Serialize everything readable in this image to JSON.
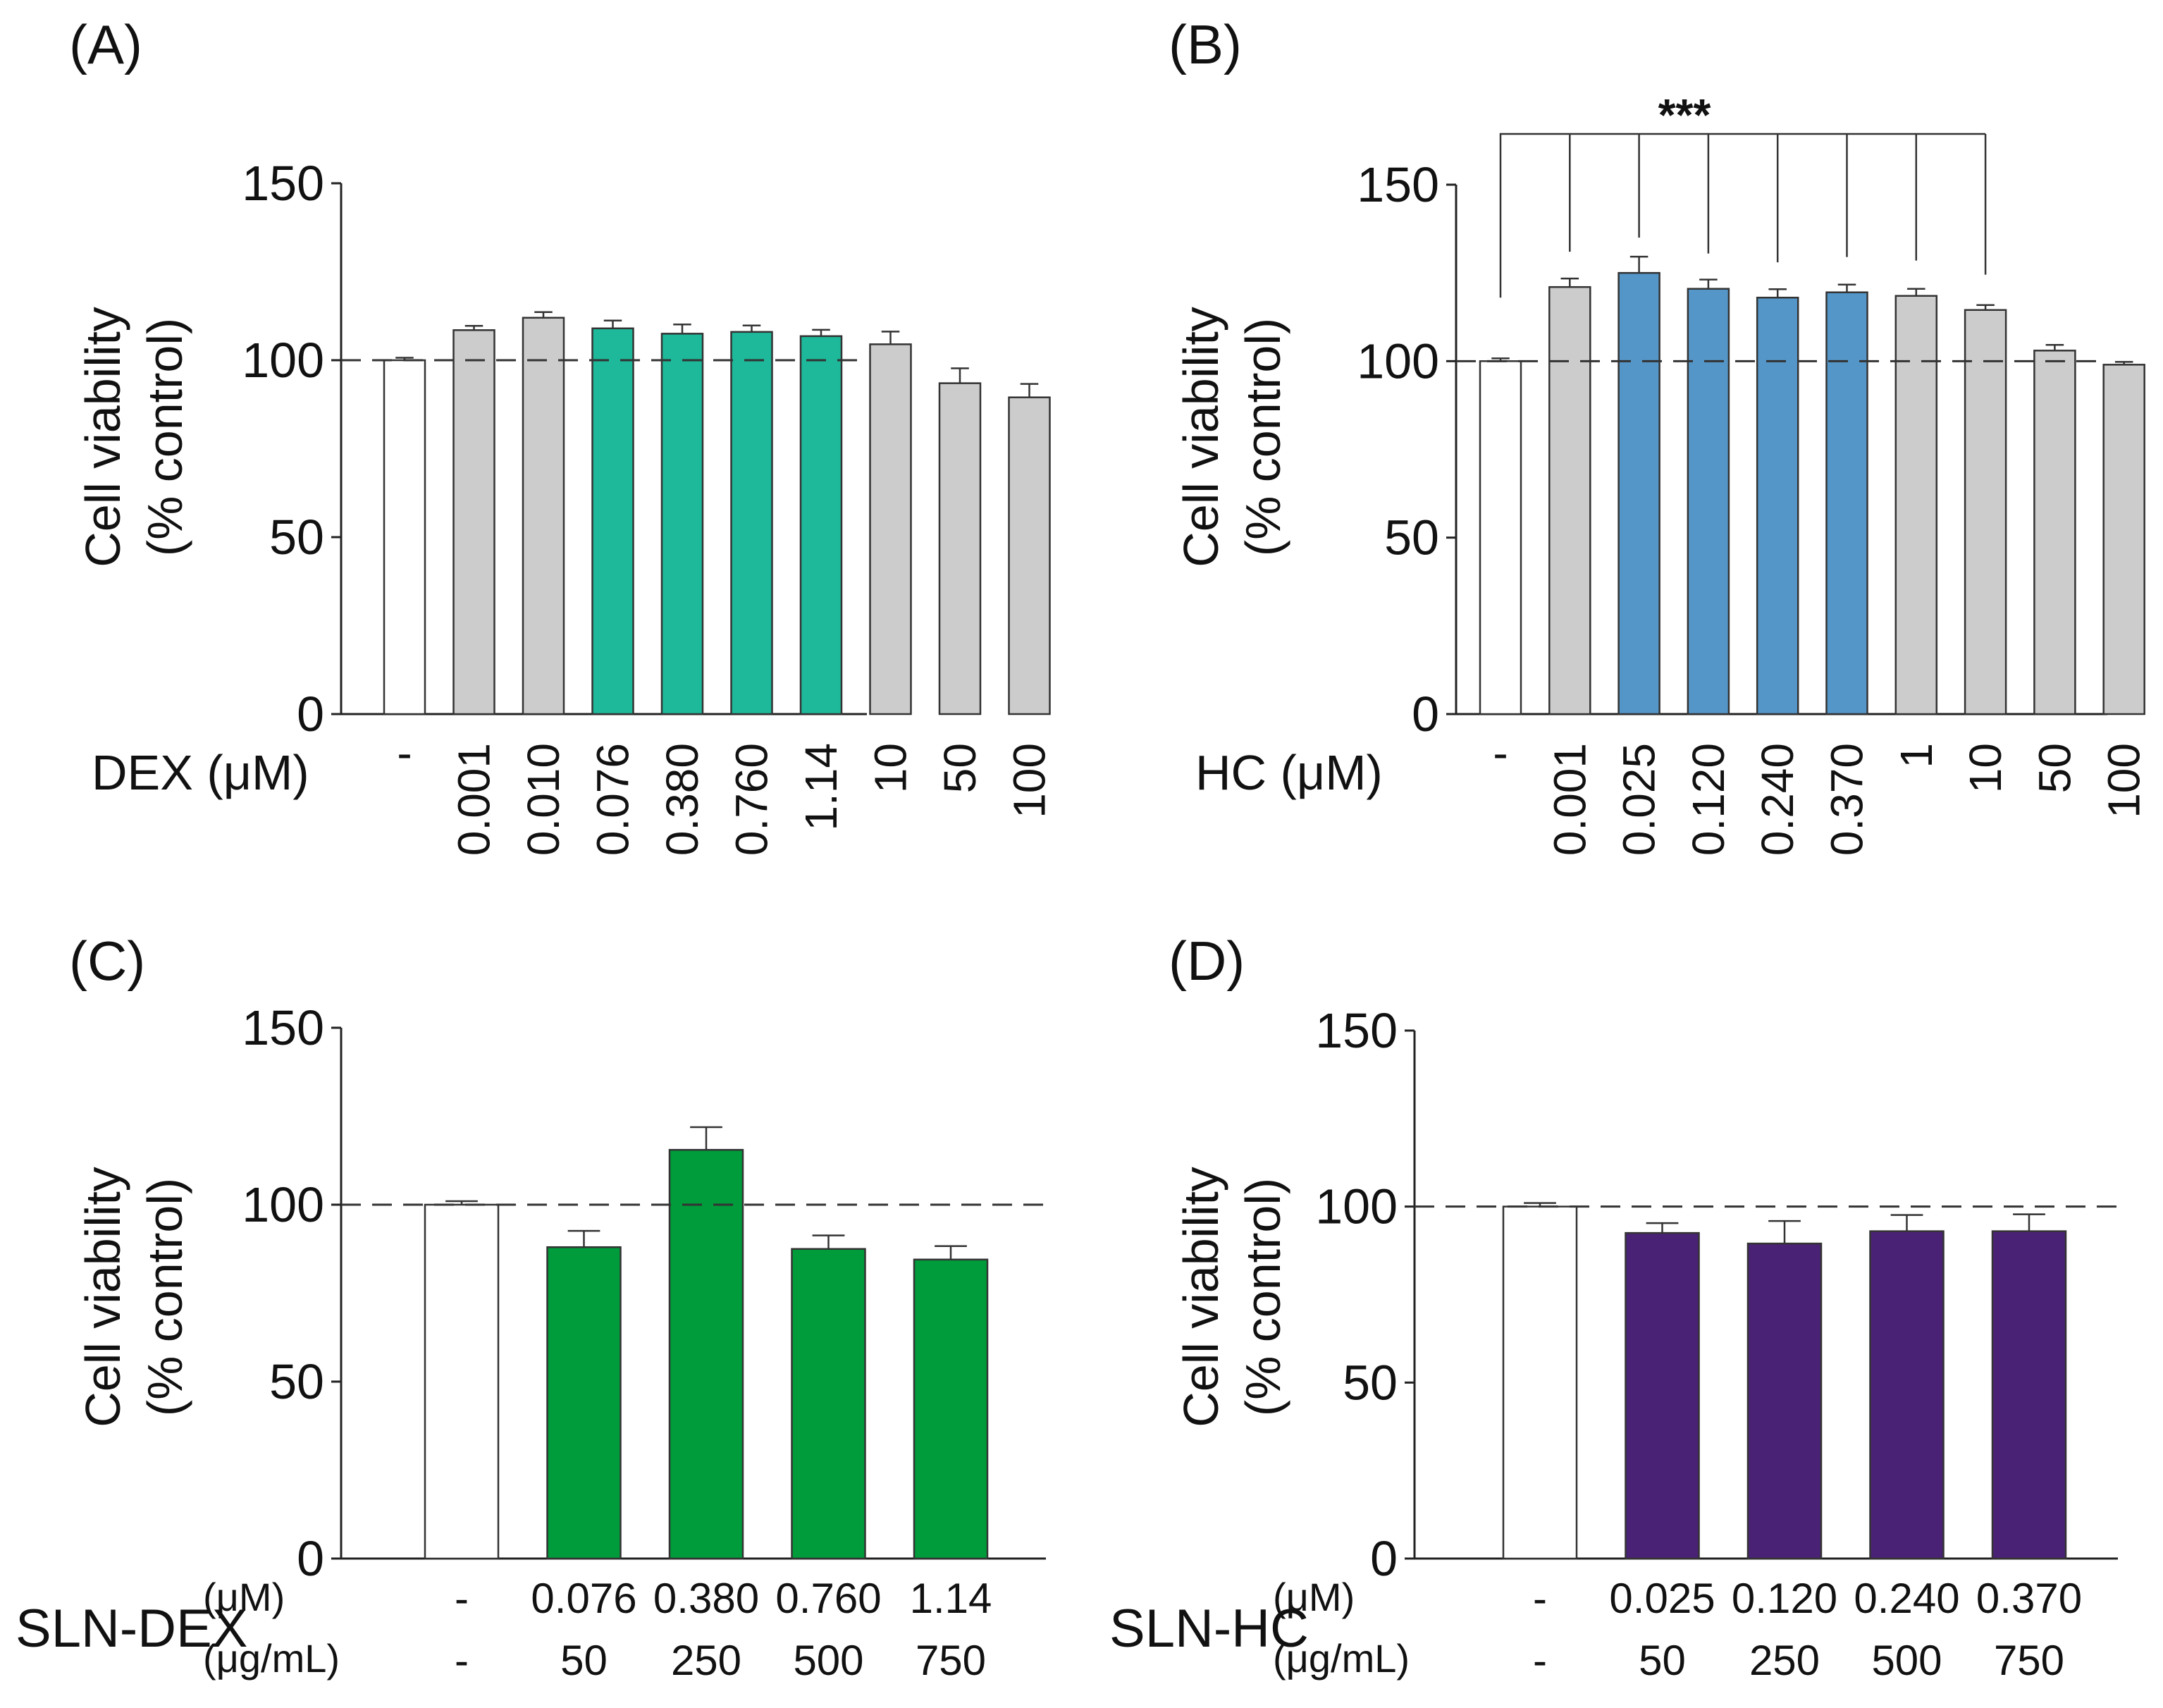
{
  "chart_data": [
    {
      "type": "bar",
      "panel": "(A)",
      "ylabel_line1": "Cell viability",
      "ylabel_line2": "(% control)",
      "ylim": [
        0,
        150
      ],
      "yticks": [
        "0",
        "50",
        "100",
        "150"
      ],
      "reference_line": 100,
      "xlabel": "DEX (μM)",
      "categories": [
        "-",
        "0.001",
        "0.010",
        "0.076",
        "0.380",
        "0.760",
        "1.14",
        "10",
        "50",
        "100"
      ],
      "values": [
        100,
        108.5,
        112,
        109,
        107.5,
        108,
        106.8,
        104.5,
        93.5,
        89.5
      ],
      "errors": [
        0.7,
        1.2,
        1.6,
        2.2,
        2.6,
        1.8,
        1.8,
        3.6,
        4.2,
        3.8
      ],
      "colors": [
        "#ffffff",
        "#cccccc",
        "#cccccc",
        "#1db99a",
        "#1db99a",
        "#1db99a",
        "#1db99a",
        "#cccccc",
        "#cccccc",
        "#cccccc"
      ]
    },
    {
      "type": "bar",
      "panel": "(B)",
      "ylabel_line1": "Cell viability",
      "ylabel_line2": "(% control)",
      "ylim": [
        0,
        150
      ],
      "yticks": [
        "0",
        "50",
        "100",
        "150"
      ],
      "reference_line": 100,
      "xlabel": "HC (μM)",
      "categories": [
        "-",
        "0.001",
        "0.025",
        "0.120",
        "0.240",
        "0.370",
        "1",
        "10",
        "50",
        "100"
      ],
      "values": [
        100,
        121,
        125,
        120.5,
        118,
        119.5,
        118.5,
        114.5,
        103,
        99
      ],
      "errors": [
        0.8,
        2.4,
        4.6,
        2.6,
        2.4,
        2.2,
        2.0,
        1.4,
        1.6,
        0.8
      ],
      "colors": [
        "#ffffff",
        "#cccccc",
        "#5596c9",
        "#5596c9",
        "#5596c9",
        "#5596c9",
        "#cccccc",
        "#cccccc",
        "#cccccc",
        "#cccccc"
      ],
      "significance": "***"
    },
    {
      "type": "bar",
      "panel": "(C)",
      "ylabel_line1": "Cell viability",
      "ylabel_line2": "(% control)",
      "ylim": [
        0,
        150
      ],
      "yticks": [
        "0",
        "50",
        "100",
        "150"
      ],
      "reference_line": 100,
      "xlabel": "SLN-DEX",
      "unit_row1": "(μM)",
      "unit_row2": "(μg/mL)",
      "categories": [
        "-",
        "0.076",
        "0.380",
        "0.760",
        "1.14"
      ],
      "categories_row2": [
        "-",
        "50",
        "250",
        "500",
        "750"
      ],
      "values": [
        100,
        88,
        115.5,
        87.5,
        84.5
      ],
      "errors": [
        1.0,
        4.6,
        6.4,
        3.8,
        3.8
      ],
      "colors": [
        "#ffffff",
        "#009b3a",
        "#009b3a",
        "#009b3a",
        "#009b3a"
      ]
    },
    {
      "type": "bar",
      "panel": "(D)",
      "ylabel_line1": "Cell viability",
      "ylabel_line2": "(% control)",
      "ylim": [
        0,
        150
      ],
      "yticks": [
        "0",
        "50",
        "100",
        "150"
      ],
      "reference_line": 100,
      "xlabel": "SLN-HC",
      "unit_row1": "(μM)",
      "unit_row2": "(μg/mL)",
      "categories": [
        "-",
        "0.025",
        "0.120",
        "0.240",
        "0.370"
      ],
      "categories_row2": [
        "-",
        "50",
        "250",
        "500",
        "750"
      ],
      "values": [
        100,
        92.5,
        89.5,
        93,
        93
      ],
      "errors": [
        1.0,
        2.8,
        6.4,
        4.6,
        4.8
      ],
      "colors": [
        "#ffffff",
        "#4a2275",
        "#4a2275",
        "#4a2275",
        "#4a2275"
      ]
    }
  ]
}
